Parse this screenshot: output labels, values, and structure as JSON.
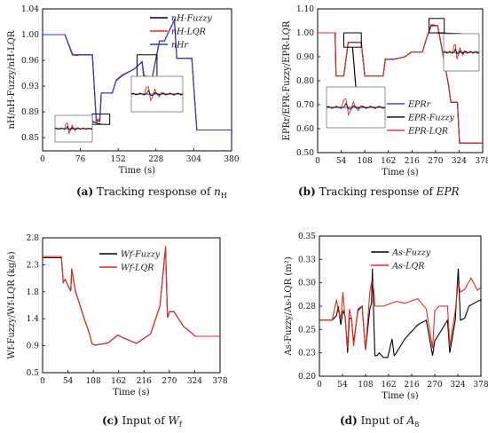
{
  "colors": {
    "Fuzzy": "#000000",
    "LQR": "#e8291c",
    "Ref": "#2a3bd6"
  },
  "chart_data": [
    {
      "type": "line",
      "caption": {
        "letter": "(a)",
        "text": "Tracking response of nH"
      },
      "xlabel": "Time (s)",
      "ylabel": "nH/nH-Fuzzy/nH-LQR",
      "xlim": [
        0,
        380
      ],
      "ylim": [
        0.832,
        1.036
      ],
      "xticks": [
        0,
        76,
        152,
        228,
        304,
        380
      ],
      "yticks": [
        0.851,
        0.888,
        0.925,
        0.962,
        0.999,
        1.036
      ],
      "legend_position": "top-right",
      "series": [
        {
          "name": "nH-Fuzzy",
          "color": "Fuzzy",
          "x": [
            0,
            45,
            60,
            65,
            80,
            100,
            108,
            115,
            118,
            130,
            140,
            148,
            160,
            185,
            200,
            205,
            220,
            235,
            245,
            265,
            270,
            278,
            300,
            310,
            340,
            380
          ],
          "y": [
            0.999,
            0.999,
            0.97,
            0.97,
            0.97,
            0.97,
            0.875,
            0.875,
            0.915,
            0.915,
            0.915,
            0.933,
            0.94,
            0.95,
            0.96,
            0.935,
            0.935,
            0.99,
            0.99,
            1.02,
            0.965,
            0.965,
            0.965,
            0.862,
            0.862,
            0.862
          ]
        },
        {
          "name": "nH-LQR",
          "color": "LQR",
          "x": [
            0,
            45,
            60,
            65,
            80,
            100,
            108,
            112,
            115,
            118,
            130,
            140,
            148,
            160,
            185,
            200,
            204,
            206,
            220,
            235,
            245,
            265,
            270,
            278,
            300,
            310,
            340,
            380
          ],
          "y": [
            0.999,
            0.999,
            0.972,
            0.969,
            0.97,
            0.97,
            0.875,
            0.878,
            0.873,
            0.915,
            0.915,
            0.915,
            0.934,
            0.941,
            0.95,
            0.96,
            0.93,
            0.94,
            0.935,
            0.99,
            0.99,
            1.02,
            0.965,
            0.965,
            0.965,
            0.862,
            0.862,
            0.862
          ]
        },
        {
          "name": "nHr",
          "color": "Ref",
          "x": [
            0,
            45,
            60,
            65,
            80,
            100,
            108,
            115,
            118,
            130,
            140,
            148,
            160,
            185,
            200,
            205,
            220,
            235,
            245,
            265,
            270,
            278,
            300,
            310,
            340,
            380
          ],
          "y": [
            0.999,
            0.999,
            0.97,
            0.97,
            0.97,
            0.97,
            0.875,
            0.875,
            0.915,
            0.915,
            0.915,
            0.933,
            0.94,
            0.95,
            0.96,
            0.935,
            0.935,
            0.99,
            0.99,
            1.02,
            0.965,
            0.965,
            0.965,
            0.862,
            0.862,
            0.862
          ]
        }
      ]
    },
    {
      "type": "line",
      "caption": {
        "letter": "(b)",
        "text": "Tracking response of EPR"
      },
      "xlabel": "Time (s)",
      "ylabel": "EPRr/EPR-Fuzzy/EPR-LQR",
      "xlim": [
        0,
        378
      ],
      "ylim": [
        0.5,
        1.1
      ],
      "xticks": [
        0,
        54,
        108,
        162,
        216,
        270,
        324,
        378
      ],
      "yticks": [
        0.5,
        0.6,
        0.7,
        0.8,
        0.9,
        1.0,
        1.1
      ],
      "legend_position": "bottom-center",
      "series": [
        {
          "name": "EPRr",
          "color": "Ref",
          "x": [
            0,
            40,
            42,
            60,
            70,
            100,
            108,
            125,
            150,
            155,
            175,
            200,
            215,
            240,
            250,
            260,
            275,
            300,
            305,
            320,
            325,
            330,
            378
          ],
          "y": [
            1.0,
            1.0,
            0.82,
            0.82,
            0.96,
            0.96,
            0.82,
            0.82,
            0.82,
            0.89,
            0.89,
            0.9,
            0.92,
            0.92,
            0.98,
            1.03,
            1.03,
            0.78,
            0.71,
            0.71,
            0.54,
            0.54,
            0.54
          ]
        },
        {
          "name": "EPR-Fuzzy",
          "color": "Fuzzy",
          "x": [
            0,
            40,
            42,
            60,
            70,
            100,
            108,
            125,
            150,
            155,
            175,
            200,
            215,
            240,
            250,
            260,
            275,
            300,
            305,
            320,
            325,
            330,
            378
          ],
          "y": [
            1.0,
            1.0,
            0.82,
            0.82,
            0.96,
            0.96,
            0.82,
            0.82,
            0.82,
            0.89,
            0.89,
            0.9,
            0.92,
            0.92,
            0.98,
            1.03,
            1.03,
            0.78,
            0.71,
            0.71,
            0.54,
            0.54,
            0.54
          ]
        },
        {
          "name": "EPR-LQR",
          "color": "LQR",
          "x": [
            0,
            40,
            42,
            60,
            70,
            100,
            108,
            125,
            150,
            155,
            175,
            200,
            215,
            240,
            250,
            260,
            275,
            300,
            305,
            320,
            325,
            330,
            378
          ],
          "y": [
            1.0,
            1.0,
            0.82,
            0.82,
            0.96,
            0.96,
            0.82,
            0.82,
            0.82,
            0.89,
            0.89,
            0.9,
            0.92,
            0.92,
            0.98,
            1.035,
            1.03,
            0.78,
            0.71,
            0.71,
            0.54,
            0.54,
            0.54
          ]
        }
      ]
    },
    {
      "type": "line",
      "caption": {
        "letter": "(c)",
        "text": "Input of Wf"
      },
      "xlabel": "Time (s)",
      "ylabel": "Wf-Fuzzy/Wf-LQR (kg/s)",
      "xlim": [
        0,
        378
      ],
      "ylim": [
        0.46,
        2.76
      ],
      "xticks": [
        0,
        54,
        108,
        162,
        216,
        270,
        324,
        378
      ],
      "yticks": [
        0.46,
        0.92,
        1.38,
        1.84,
        2.3,
        2.76
      ],
      "legend_position": "top-center",
      "series": [
        {
          "name": "Wf-Fuzzy",
          "color": "Fuzzy",
          "x": [
            0,
            40,
            44,
            48,
            60,
            62,
            70,
            80,
            90,
            100,
            105,
            110,
            130,
            140,
            160,
            170,
            200,
            230,
            250,
            262,
            266,
            270,
            280,
            300,
            320,
            325,
            378
          ],
          "y": [
            2.42,
            2.42,
            2.0,
            2.05,
            1.85,
            2.22,
            1.85,
            1.6,
            1.35,
            1.12,
            0.96,
            0.93,
            0.95,
            0.97,
            1.1,
            1.06,
            0.96,
            1.12,
            1.6,
            2.6,
            1.4,
            1.5,
            1.5,
            1.25,
            1.12,
            1.08,
            1.08
          ]
        },
        {
          "name": "Wf-LQR",
          "color": "LQR",
          "x": [
            0,
            40,
            44,
            48,
            60,
            62,
            70,
            80,
            90,
            100,
            105,
            110,
            130,
            140,
            160,
            170,
            200,
            230,
            250,
            262,
            266,
            270,
            280,
            300,
            320,
            325,
            378
          ],
          "y": [
            2.44,
            2.44,
            2.0,
            2.05,
            1.85,
            2.24,
            1.85,
            1.6,
            1.35,
            1.12,
            0.96,
            0.93,
            0.95,
            0.97,
            1.1,
            1.06,
            0.96,
            1.12,
            1.6,
            2.62,
            1.4,
            1.5,
            1.5,
            1.25,
            1.12,
            1.08,
            1.08
          ]
        }
      ]
    },
    {
      "type": "line",
      "caption": {
        "letter": "(d)",
        "text": "Input of A8"
      },
      "xlabel": "Time (s)",
      "ylabel": "As-Fuzzy/As-LQR (m²)",
      "xlim": [
        0,
        378
      ],
      "ylim": [
        0.2,
        0.35
      ],
      "xticks": [
        0,
        54,
        108,
        162,
        216,
        270,
        324,
        378
      ],
      "yticks": [
        0.2,
        0.225,
        0.25,
        0.275,
        0.3,
        0.325,
        0.35
      ],
      "legend_position": "top-center",
      "series": [
        {
          "name": "As-Fuzzy",
          "color": "Fuzzy",
          "x": [
            0,
            30,
            40,
            44,
            50,
            55,
            60,
            66,
            70,
            75,
            80,
            90,
            100,
            108,
            118,
            122,
            124,
            128,
            130,
            135,
            140,
            150,
            160,
            170,
            175,
            180,
            200,
            230,
            250,
            265,
            270,
            280,
            300,
            305,
            318,
            325,
            330,
            340,
            350,
            370,
            378
          ],
          "y": [
            0.26,
            0.26,
            0.265,
            0.275,
            0.255,
            0.27,
            0.265,
            0.225,
            0.262,
            0.262,
            0.235,
            0.27,
            0.275,
            0.228,
            0.272,
            0.278,
            0.315,
            0.25,
            0.222,
            0.222,
            0.225,
            0.22,
            0.22,
            0.24,
            0.222,
            0.225,
            0.24,
            0.255,
            0.26,
            0.222,
            0.238,
            0.245,
            0.26,
            0.225,
            0.26,
            0.315,
            0.26,
            0.262,
            0.275,
            0.28,
            0.282
          ]
        },
        {
          "name": "As-LQR",
          "color": "LQR",
          "x": [
            0,
            30,
            40,
            44,
            50,
            55,
            60,
            66,
            70,
            75,
            80,
            90,
            100,
            108,
            118,
            122,
            124,
            128,
            130,
            150,
            180,
            200,
            230,
            250,
            265,
            270,
            280,
            300,
            305,
            318,
            325,
            330,
            340,
            355,
            370,
            378
          ],
          "y": [
            0.26,
            0.26,
            0.282,
            0.27,
            0.262,
            0.29,
            0.262,
            0.23,
            0.272,
            0.262,
            0.232,
            0.272,
            0.275,
            0.228,
            0.29,
            0.3,
            0.3,
            0.29,
            0.275,
            0.275,
            0.28,
            0.278,
            0.283,
            0.272,
            0.23,
            0.27,
            0.275,
            0.275,
            0.232,
            0.27,
            0.3,
            0.29,
            0.293,
            0.305,
            0.292,
            0.295
          ]
        }
      ]
    }
  ],
  "insets": [
    {
      "panel": 0,
      "label": "zoom-a-1",
      "window": [
        100,
        135,
        0.87,
        0.885
      ]
    },
    {
      "panel": 0,
      "label": "zoom-a-2",
      "window": [
        190,
        230,
        0.93,
        0.97
      ]
    },
    {
      "panel": 1,
      "label": "zoom-b-1",
      "window": [
        60,
        100,
        0.94,
        1.0
      ]
    },
    {
      "panel": 1,
      "label": "zoom-b-2",
      "window": [
        255,
        290,
        1.0,
        1.06
      ]
    }
  ]
}
